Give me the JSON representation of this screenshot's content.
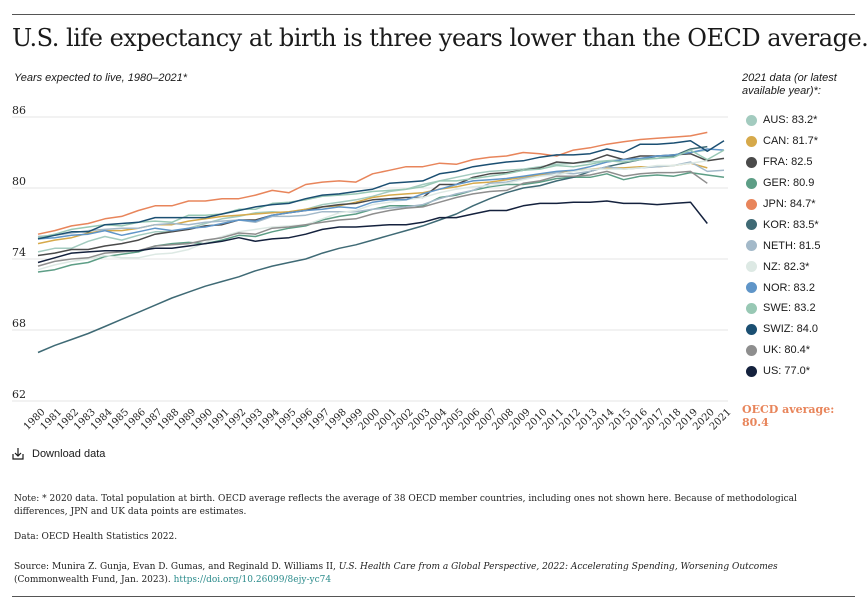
{
  "header": {
    "title": "U.S. life expectancy at birth is three years lower than the OECD average.",
    "subtitle": "Years expected to live, 1980–2021*"
  },
  "legend": {
    "heading": "2021 data (or latest available year)*:",
    "items": [
      {
        "label": "AUS: 83.2*",
        "color": "#a3cbbf"
      },
      {
        "label": "CAN: 81.7*",
        "color": "#d6a94a"
      },
      {
        "label": "FRA: 82.5",
        "color": "#4a4a4a"
      },
      {
        "label": "GER: 80.9",
        "color": "#5d9e86"
      },
      {
        "label": "JPN: 84.7*",
        "color": "#e8855b"
      },
      {
        "label": "KOR: 83.5*",
        "color": "#3f6a75"
      },
      {
        "label": "NETH: 81.5",
        "color": "#a3b9c9"
      },
      {
        "label": "NZ: 82.3*",
        "color": "#dde9e4"
      },
      {
        "label": "NOR: 83.2",
        "color": "#5f95c8"
      },
      {
        "label": "SWE: 83.2",
        "color": "#98c8b4"
      },
      {
        "label": "SWIZ: 84.0",
        "color": "#1b4f72"
      },
      {
        "label": "UK: 80.4*",
        "color": "#8e8e8e"
      },
      {
        "label": "US: 77.0*",
        "color": "#14213d"
      }
    ],
    "oecd_average": "OECD average: 80.4"
  },
  "download": {
    "label": "Download data",
    "icon": "download-icon"
  },
  "footer": {
    "note": "Note: * 2020 data. Total population at birth. OECD average reflects the average of 38 OECD member countries, including ones not shown here. Because of methodological differences, JPN and UK data points are estimates.",
    "data_source": "Data: OECD Health Statistics 2022.",
    "source_prefix": "Source: Munira Z. Gunja, Evan D. Gumas, and Reginald D. Williams II, ",
    "source_title": "U.S. Health Care from a Global Perspective, 2022: Accelerating Spending, Worsening Outcomes",
    "source_suffix": " (Commonwealth Fund, Jan. 2023). ",
    "source_link": "https://doi.org/10.26099/8ejy-yc74"
  },
  "chart_data": {
    "type": "line",
    "x": [
      1980,
      1981,
      1982,
      1983,
      1984,
      1985,
      1986,
      1987,
      1988,
      1989,
      1990,
      1991,
      1992,
      1993,
      1994,
      1995,
      1996,
      1997,
      1998,
      1999,
      2000,
      2001,
      2002,
      2003,
      2004,
      2005,
      2006,
      2007,
      2008,
      2009,
      2010,
      2011,
      2012,
      2013,
      2014,
      2015,
      2016,
      2017,
      2018,
      2019,
      2020,
      2021
    ],
    "x_ticks": [
      "1980",
      "1981",
      "1982",
      "1983",
      "1984",
      "1985",
      "1986",
      "1987",
      "1988",
      "1989",
      "1990",
      "1991",
      "1992",
      "1993",
      "1994",
      "1995",
      "1996",
      "1997",
      "1998",
      "1999",
      "2000",
      "2001",
      "2002",
      "2003",
      "2004",
      "2005",
      "2006",
      "2007",
      "2008",
      "2009",
      "2010",
      "2011",
      "2012",
      "2013",
      "2014",
      "2015",
      "2016",
      "2017",
      "2018",
      "2019",
      "2020",
      "2021"
    ],
    "y_ticks": [
      "62",
      "68",
      "74",
      "80",
      "86"
    ],
    "ylim": [
      62,
      87
    ],
    "grid": true,
    "legend": "right",
    "series": [
      {
        "key": "AUS",
        "color": "#a3cbbf",
        "values": [
          74.6,
          74.9,
          74.9,
          75.5,
          75.9,
          75.6,
          76.0,
          76.3,
          76.3,
          76.6,
          77.0,
          77.4,
          77.6,
          77.9,
          78.0,
          77.9,
          78.2,
          78.6,
          78.8,
          79.0,
          79.3,
          79.7,
          79.9,
          80.3,
          80.6,
          80.9,
          81.2,
          81.4,
          81.5,
          81.6,
          81.8,
          82.0,
          82.1,
          82.2,
          82.3,
          82.4,
          82.5,
          82.5,
          82.8,
          83.0,
          83.2,
          null
        ]
      },
      {
        "key": "CAN",
        "color": "#d6a94a",
        "values": [
          75.3,
          75.6,
          75.8,
          76.2,
          76.4,
          76.4,
          76.6,
          76.9,
          76.9,
          77.2,
          77.4,
          77.6,
          77.7,
          77.8,
          77.9,
          78.0,
          78.2,
          78.4,
          78.5,
          78.8,
          79.2,
          79.4,
          79.5,
          79.6,
          79.9,
          80.1,
          80.4,
          80.5,
          80.7,
          80.9,
          81.1,
          81.3,
          81.5,
          81.6,
          81.7,
          81.7,
          81.8,
          81.8,
          81.9,
          82.1,
          81.7,
          null
        ]
      },
      {
        "key": "FRA",
        "color": "#4a4a4a",
        "values": [
          74.3,
          74.5,
          74.8,
          74.8,
          75.1,
          75.3,
          75.6,
          76.1,
          76.3,
          76.5,
          76.8,
          76.9,
          77.3,
          77.3,
          77.7,
          77.9,
          78.1,
          78.4,
          78.6,
          78.7,
          79.0,
          79.1,
          79.2,
          79.2,
          80.3,
          80.3,
          80.9,
          81.2,
          81.3,
          81.5,
          81.7,
          82.2,
          82.1,
          82.3,
          82.8,
          82.4,
          82.7,
          82.7,
          82.8,
          82.9,
          82.3,
          82.5
        ]
      },
      {
        "key": "GER",
        "color": "#5d9e86",
        "values": [
          72.9,
          73.1,
          73.5,
          73.7,
          74.2,
          74.4,
          74.6,
          75.1,
          75.3,
          75.4,
          75.3,
          75.6,
          76.0,
          75.9,
          76.3,
          76.6,
          76.8,
          77.3,
          77.6,
          77.8,
          78.2,
          78.5,
          78.5,
          78.5,
          79.2,
          79.4,
          79.8,
          80.1,
          80.3,
          80.3,
          80.5,
          80.8,
          80.9,
          80.9,
          81.2,
          80.7,
          81.0,
          81.1,
          81.0,
          81.3,
          81.1,
          80.9
        ]
      },
      {
        "key": "JPN",
        "color": "#e8855b",
        "values": [
          76.1,
          76.4,
          76.8,
          77.0,
          77.4,
          77.6,
          78.1,
          78.5,
          78.5,
          78.9,
          78.9,
          79.1,
          79.1,
          79.4,
          79.8,
          79.6,
          80.3,
          80.5,
          80.6,
          80.5,
          81.2,
          81.5,
          81.8,
          81.8,
          82.1,
          82.0,
          82.4,
          82.6,
          82.7,
          83.0,
          82.9,
          82.7,
          83.2,
          83.4,
          83.7,
          83.9,
          84.1,
          84.2,
          84.3,
          84.4,
          84.7,
          null
        ]
      },
      {
        "key": "KOR",
        "color": "#3f6a75",
        "values": [
          66.1,
          66.7,
          67.2,
          67.7,
          68.3,
          68.9,
          69.5,
          70.1,
          70.7,
          71.2,
          71.7,
          72.1,
          72.5,
          73.0,
          73.4,
          73.7,
          74.0,
          74.5,
          74.9,
          75.2,
          75.6,
          76.0,
          76.4,
          76.8,
          77.3,
          77.8,
          78.5,
          79.1,
          79.6,
          80.0,
          80.2,
          80.6,
          80.9,
          81.4,
          81.8,
          82.1,
          82.4,
          82.7,
          82.7,
          83.3,
          83.5,
          null
        ]
      },
      {
        "key": "NETH",
        "color": "#a3b9c9",
        "values": [
          75.9,
          76.0,
          76.2,
          76.4,
          76.5,
          76.6,
          76.6,
          76.9,
          77.0,
          76.9,
          77.1,
          77.2,
          77.3,
          77.1,
          77.6,
          77.6,
          77.7,
          78.0,
          78.0,
          78.0,
          78.2,
          78.3,
          78.4,
          78.6,
          79.1,
          79.5,
          79.8,
          80.4,
          80.5,
          80.8,
          81.0,
          81.3,
          81.2,
          81.4,
          81.8,
          81.6,
          81.7,
          81.8,
          81.9,
          82.2,
          81.4,
          81.5
        ]
      },
      {
        "key": "NZ",
        "color": "#dde9e4",
        "values": [
          73.1,
          73.5,
          73.8,
          74.0,
          74.3,
          74.1,
          74.1,
          74.4,
          74.5,
          74.8,
          75.4,
          75.9,
          76.3,
          76.5,
          76.7,
          76.8,
          76.9,
          77.4,
          77.9,
          78.1,
          78.6,
          78.8,
          79.0,
          79.2,
          79.6,
          79.9,
          80.1,
          80.2,
          80.4,
          80.7,
          81.0,
          81.1,
          81.4,
          81.6,
          81.6,
          81.6,
          81.7,
          81.9,
          81.9,
          82.1,
          82.3,
          null
        ]
      },
      {
        "key": "NOR",
        "color": "#5f95c8",
        "values": [
          75.7,
          75.8,
          76.0,
          76.1,
          76.4,
          76.0,
          76.3,
          76.6,
          76.4,
          76.6,
          76.7,
          77.0,
          77.3,
          77.2,
          77.7,
          77.9,
          78.1,
          78.2,
          78.4,
          78.3,
          78.8,
          79.0,
          79.0,
          79.5,
          79.9,
          80.3,
          80.6,
          80.7,
          80.8,
          81.0,
          81.2,
          81.4,
          81.5,
          81.8,
          82.2,
          82.4,
          82.5,
          82.7,
          82.8,
          83.0,
          83.3,
          83.2
        ]
      },
      {
        "key": "SWE",
        "color": "#98c8b4",
        "values": [
          75.8,
          76.1,
          76.5,
          76.7,
          76.9,
          76.8,
          77.1,
          77.2,
          77.1,
          77.7,
          77.7,
          77.8,
          78.2,
          78.2,
          78.7,
          78.8,
          79.0,
          79.3,
          79.4,
          79.5,
          79.7,
          79.8,
          79.9,
          80.1,
          80.6,
          80.6,
          80.8,
          81.0,
          81.2,
          81.5,
          81.6,
          81.9,
          81.8,
          82.0,
          82.3,
          82.2,
          82.4,
          82.5,
          82.6,
          83.2,
          82.4,
          83.2
        ]
      },
      {
        "key": "SWIZ",
        "color": "#1b4f72",
        "values": [
          75.7,
          76.0,
          76.3,
          76.3,
          76.9,
          77.0,
          77.1,
          77.5,
          77.5,
          77.5,
          77.5,
          77.8,
          78.1,
          78.4,
          78.6,
          78.7,
          79.1,
          79.4,
          79.5,
          79.7,
          79.9,
          80.4,
          80.5,
          80.6,
          81.2,
          81.4,
          81.8,
          82.0,
          82.2,
          82.3,
          82.6,
          82.8,
          82.8,
          82.9,
          83.3,
          83.0,
          83.7,
          83.7,
          83.8,
          84.0,
          83.1,
          84.0
        ]
      },
      {
        "key": "UK",
        "color": "#8e8e8e",
        "values": [
          73.4,
          73.8,
          74.0,
          74.1,
          74.5,
          74.6,
          74.7,
          75.1,
          75.2,
          75.3,
          75.6,
          75.8,
          76.2,
          76.1,
          76.6,
          76.7,
          76.9,
          77.1,
          77.3,
          77.4,
          77.8,
          78.1,
          78.3,
          78.4,
          78.8,
          79.2,
          79.5,
          79.7,
          79.8,
          80.4,
          80.6,
          81.0,
          81.0,
          81.1,
          81.4,
          81.0,
          81.2,
          81.3,
          81.3,
          81.4,
          80.4,
          null
        ]
      },
      {
        "key": "US",
        "color": "#14213d",
        "values": [
          73.7,
          74.1,
          74.5,
          74.6,
          74.7,
          74.7,
          74.7,
          74.9,
          74.9,
          75.1,
          75.3,
          75.5,
          75.8,
          75.5,
          75.7,
          75.8,
          76.1,
          76.5,
          76.7,
          76.7,
          76.8,
          76.9,
          76.9,
          77.1,
          77.5,
          77.5,
          77.8,
          78.1,
          78.1,
          78.5,
          78.7,
          78.7,
          78.8,
          78.8,
          78.9,
          78.7,
          78.7,
          78.6,
          78.7,
          78.8,
          77.0,
          null
        ]
      }
    ]
  }
}
